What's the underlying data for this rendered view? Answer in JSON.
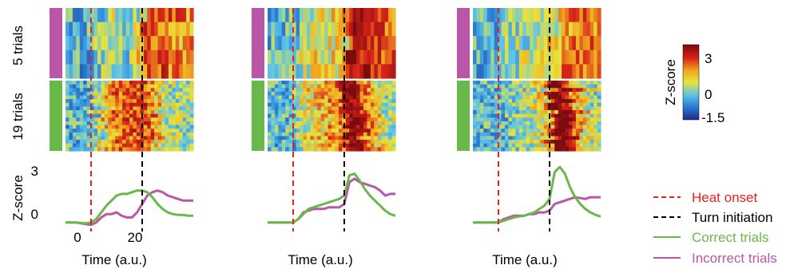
{
  "chart_data": {
    "type": "heatmap",
    "row_groups": [
      {
        "label": "5 trials",
        "color": "#b956a8",
        "rows": 5
      },
      {
        "label": "19 trials",
        "color": "#68b84a",
        "rows": 19
      }
    ],
    "colorbar": {
      "label": "Z-score",
      "ticks": [
        "3",
        "0",
        "-1.5"
      ],
      "range": [
        -1.5,
        3.5
      ]
    },
    "line_plot": {
      "ylabel": "Z-score",
      "yticks": [
        "3",
        "0"
      ],
      "ylim": [
        -0.3,
        3.5
      ],
      "xticks": [
        "0",
        "20"
      ],
      "xlabel": "Time (a.u.)"
    },
    "panels": [
      {
        "xlabel": "Time (a.u.)",
        "xlim": [
          -10,
          40
        ],
        "heat_onset": 0,
        "turn_initiation": 20,
        "correct": {
          "x": [
            -10,
            -6,
            -2,
            0,
            2,
            4,
            6,
            8,
            10,
            12,
            14,
            16,
            18,
            20,
            22,
            24,
            26,
            28,
            30,
            32,
            34,
            36,
            38,
            40
          ],
          "y": [
            0,
            0,
            -0.05,
            0,
            0.2,
            0.6,
            1.0,
            1.3,
            1.6,
            1.7,
            1.7,
            1.8,
            1.9,
            1.9,
            1.8,
            1.5,
            1.1,
            0.8,
            0.6,
            0.5,
            0.45,
            0.45,
            0.4,
            0.4
          ]
        },
        "incorrect": {
          "x": [
            -10,
            -6,
            -2,
            0,
            2,
            4,
            6,
            8,
            10,
            12,
            14,
            16,
            18,
            20,
            22,
            24,
            26,
            28,
            30,
            32,
            34,
            36,
            38,
            40
          ],
          "y": [
            0,
            0,
            -0.1,
            -0.15,
            0,
            0.3,
            0.5,
            0.5,
            0.6,
            0.4,
            0.3,
            0.3,
            0.6,
            1.1,
            1.6,
            1.8,
            1.9,
            1.8,
            1.6,
            1.5,
            1.4,
            1.3,
            1.3,
            1.3
          ]
        }
      },
      {
        "xlabel": "Time (a.u.)",
        "xlim": [
          -10,
          40
        ],
        "heat_onset": 0,
        "turn_initiation": 20,
        "correct": {
          "x": [
            -10,
            -6,
            -2,
            0,
            2,
            4,
            6,
            8,
            10,
            12,
            14,
            16,
            18,
            20,
            22,
            24,
            26,
            28,
            30,
            32,
            34,
            36,
            38,
            40
          ],
          "y": [
            0,
            0,
            0,
            0,
            0.2,
            0.5,
            0.8,
            0.9,
            1.0,
            1.1,
            1.2,
            1.3,
            1.4,
            1.6,
            2.8,
            2.9,
            2.5,
            2.0,
            1.6,
            1.3,
            1.0,
            0.7,
            0.5,
            0.4
          ]
        },
        "incorrect": {
          "x": [
            -10,
            -6,
            -2,
            0,
            2,
            4,
            6,
            8,
            10,
            12,
            14,
            16,
            18,
            20,
            22,
            24,
            26,
            28,
            30,
            32,
            34,
            36,
            38,
            40
          ],
          "y": [
            0,
            0,
            0,
            0,
            0.2,
            0.6,
            0.7,
            0.8,
            0.8,
            0.8,
            0.9,
            0.9,
            0.9,
            1.1,
            2.4,
            2.6,
            2.4,
            2.3,
            2.2,
            2.1,
            1.9,
            1.6,
            1.7,
            1.7
          ]
        }
      },
      {
        "xlabel": "Time (a.u.)",
        "xlim": [
          -10,
          40
        ],
        "heat_onset": 0,
        "turn_initiation": 20,
        "correct": {
          "x": [
            -10,
            -6,
            -2,
            0,
            2,
            4,
            6,
            8,
            10,
            12,
            14,
            16,
            18,
            20,
            22,
            24,
            26,
            28,
            30,
            32,
            34,
            36,
            38,
            40
          ],
          "y": [
            0,
            0,
            0,
            0,
            0.1,
            0.2,
            0.3,
            0.35,
            0.4,
            0.5,
            0.6,
            0.8,
            1.0,
            1.4,
            3.0,
            3.3,
            2.9,
            2.1,
            1.5,
            1.1,
            0.8,
            0.6,
            0.45,
            0.35
          ]
        },
        "incorrect": {
          "x": [
            -10,
            -6,
            -2,
            0,
            2,
            4,
            6,
            8,
            10,
            12,
            14,
            16,
            18,
            20,
            22,
            24,
            26,
            28,
            30,
            32,
            34,
            36,
            38,
            40
          ],
          "y": [
            0,
            0,
            0,
            0,
            0.2,
            0.3,
            0.4,
            0.4,
            0.4,
            0.5,
            0.5,
            0.6,
            0.6,
            0.7,
            1.1,
            1.2,
            1.3,
            1.4,
            1.5,
            1.45,
            1.4,
            1.5,
            1.5,
            1.5
          ]
        }
      }
    ],
    "legend": [
      {
        "label": "Heat onset",
        "style": "dashed",
        "color": "#e8211c",
        "text_color": "#e8211c"
      },
      {
        "label": "Turn initiation",
        "style": "dashed",
        "color": "#000000",
        "text_color": "#000000"
      },
      {
        "label": "Correct trials",
        "style": "solid",
        "color": "#68b84a",
        "text_color": "#68b84a"
      },
      {
        "label": "Incorrect trials",
        "style": "solid",
        "color": "#b956a8",
        "text_color": "#b956a8"
      }
    ]
  }
}
